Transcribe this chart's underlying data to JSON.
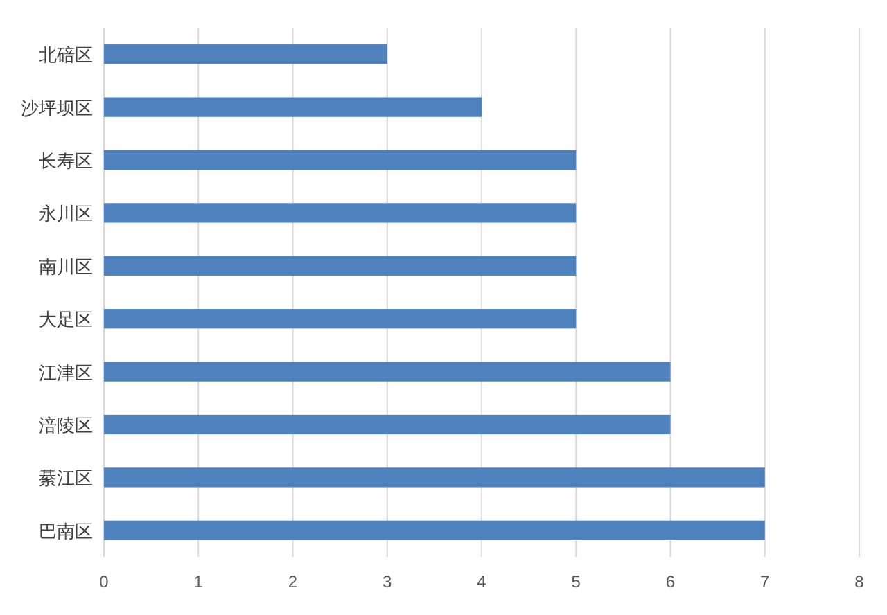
{
  "chart_data": {
    "type": "bar",
    "orientation": "horizontal",
    "categories": [
      "北碚区",
      "沙坪坝区",
      "长寿区",
      "永川区",
      "南川区",
      "大足区",
      "江津区",
      "涪陵区",
      "綦江区",
      "巴南区"
    ],
    "values": [
      3,
      4,
      5,
      5,
      5,
      5,
      6,
      6,
      7,
      7
    ],
    "color": "#4f81bd",
    "xlim": [
      0,
      8
    ],
    "xticks": [
      0,
      1,
      2,
      3,
      4,
      5,
      6,
      7,
      8
    ],
    "grid": "x"
  }
}
